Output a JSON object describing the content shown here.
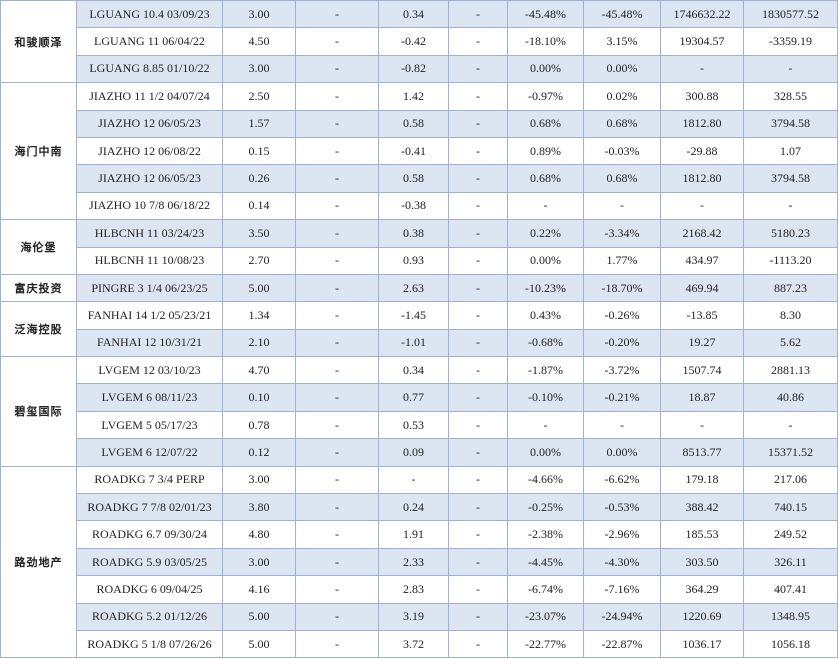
{
  "groups": [
    {
      "name": "和骏顺泽",
      "rows": [
        [
          "LGUANG 10.4 03/09/23",
          "3.00",
          "-",
          "0.34",
          "-",
          "-45.48%",
          "-45.48%",
          "1746632.22",
          "1830577.52"
        ],
        [
          "LGUANG 11 06/04/22",
          "4.50",
          "-",
          "-0.42",
          "-",
          "-18.10%",
          "3.15%",
          "19304.57",
          "-3359.19"
        ],
        [
          "LGUANG 8.85 01/10/22",
          "3.00",
          "-",
          "-0.82",
          "-",
          "0.00%",
          "0.00%",
          "-",
          "-"
        ]
      ]
    },
    {
      "name": "海门中南",
      "rows": [
        [
          "JIAZHO 11 1/2 04/07/24",
          "2.50",
          "-",
          "1.42",
          "-",
          "-0.97%",
          "0.02%",
          "300.88",
          "328.55"
        ],
        [
          "JIAZHO 12 06/05/23",
          "1.57",
          "-",
          "0.58",
          "-",
          "0.68%",
          "0.68%",
          "1812.80",
          "3794.58"
        ],
        [
          "JIAZHO 12 06/08/22",
          "0.15",
          "-",
          "-0.41",
          "-",
          "0.89%",
          "-0.03%",
          "-29.88",
          "1.07"
        ],
        [
          "JIAZHO 12 06/05/23",
          "0.26",
          "-",
          "0.58",
          "-",
          "0.68%",
          "0.68%",
          "1812.80",
          "3794.58"
        ],
        [
          "JIAZHO 10 7/8 06/18/22",
          "0.14",
          "-",
          "-0.38",
          "-",
          "-",
          "-",
          "-",
          "-"
        ]
      ]
    },
    {
      "name": "海伦堡",
      "rows": [
        [
          "HLBCNH 11 03/24/23",
          "3.50",
          "-",
          "0.38",
          "-",
          "0.22%",
          "-3.34%",
          "2168.42",
          "5180.23"
        ],
        [
          "HLBCNH 11 10/08/23",
          "2.70",
          "-",
          "0.93",
          "-",
          "0.00%",
          "1.77%",
          "434.97",
          "-1113.20"
        ]
      ]
    },
    {
      "name": "富庆投资",
      "rows": [
        [
          "PINGRE 3 1/4 06/23/25",
          "5.00",
          "-",
          "2.63",
          "-",
          "-10.23%",
          "-18.70%",
          "469.94",
          "887.23"
        ]
      ]
    },
    {
      "name": "泛海控股",
      "rows": [
        [
          "FANHAI 14 1/2 05/23/21",
          "1.34",
          "-",
          "-1.45",
          "-",
          "0.43%",
          "-0.26%",
          "-13.85",
          "8.30"
        ],
        [
          "FANHAI 12 10/31/21",
          "2.10",
          "-",
          "-1.01",
          "-",
          "-0.68%",
          "-0.20%",
          "19.27",
          "5.62"
        ]
      ]
    },
    {
      "name": "碧玺国际",
      "rows": [
        [
          "LVGEM 12 03/10/23",
          "4.70",
          "-",
          "0.34",
          "-",
          "-1.87%",
          "-3.72%",
          "1507.74",
          "2881.13"
        ],
        [
          "LVGEM 6 08/11/23",
          "0.10",
          "-",
          "0.77",
          "-",
          "-0.10%",
          "-0.21%",
          "18.87",
          "40.86"
        ],
        [
          "LVGEM 5 05/17/23",
          "0.78",
          "-",
          "0.53",
          "-",
          "-",
          "-",
          "-",
          "-"
        ],
        [
          "LVGEM 6 12/07/22",
          "0.12",
          "-",
          "0.09",
          "-",
          "0.00%",
          "0.00%",
          "8513.77",
          "15371.52"
        ]
      ]
    },
    {
      "name": "路劲地产",
      "rows": [
        [
          "ROADKG 7 3/4 PERP",
          "3.00",
          "-",
          "-",
          "-",
          "-4.66%",
          "-6.62%",
          "179.18",
          "217.06"
        ],
        [
          "ROADKG 7 7/8 02/01/23",
          "3.80",
          "-",
          "0.24",
          "-",
          "-0.25%",
          "-0.53%",
          "388.42",
          "740.15"
        ],
        [
          "ROADKG 6.7 09/30/24",
          "4.80",
          "-",
          "1.91",
          "-",
          "-2.38%",
          "-2.96%",
          "185.53",
          "249.52"
        ],
        [
          "ROADKG 5.9 03/05/25",
          "3.00",
          "-",
          "2.33",
          "-",
          "-4.45%",
          "-4.30%",
          "303.50",
          "326.11"
        ],
        [
          "ROADKG 6 09/04/25",
          "4.16",
          "-",
          "2.83",
          "-",
          "-6.74%",
          "-7.16%",
          "364.29",
          "407.41"
        ],
        [
          "ROADKG 5.2 01/12/26",
          "5.00",
          "-",
          "3.19",
          "-",
          "-23.07%",
          "-24.94%",
          "1220.69",
          "1348.95"
        ],
        [
          "ROADKG 5 1/8 07/26/26",
          "5.00",
          "-",
          "3.72",
          "-",
          "-22.77%",
          "-22.87%",
          "1036.17",
          "1056.18"
        ]
      ]
    }
  ]
}
